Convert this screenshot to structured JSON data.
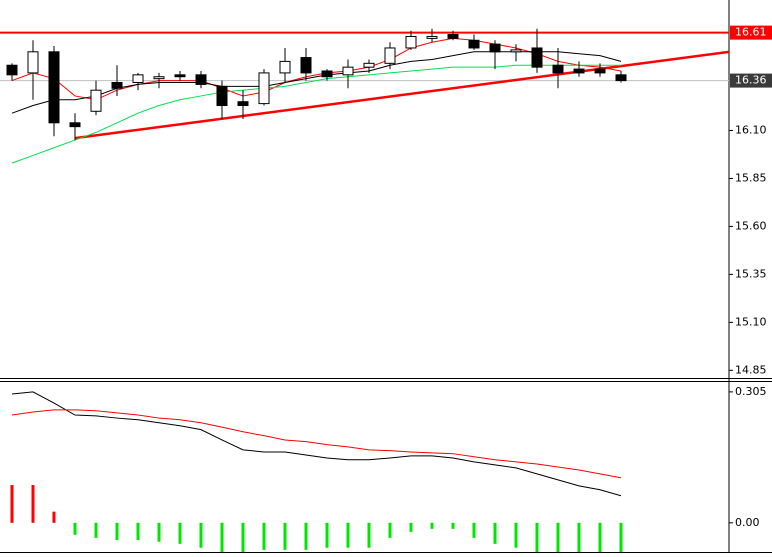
{
  "chart_data": [
    {
      "type": "candlestick",
      "candles": {
        "open": [
          16.44,
          16.4,
          16.51,
          16.14,
          16.2,
          16.35,
          16.35,
          16.37,
          16.39,
          16.39,
          16.33,
          16.25,
          16.24,
          16.4,
          16.48,
          16.41,
          16.39,
          16.43,
          16.45,
          16.53,
          16.58,
          16.6,
          16.57,
          16.55,
          16.51,
          16.53,
          16.44,
          16.42,
          16.42,
          16.39
        ],
        "high": [
          16.45,
          16.57,
          16.54,
          16.19,
          16.36,
          16.44,
          16.4,
          16.4,
          16.41,
          16.41,
          16.36,
          16.31,
          16.42,
          16.53,
          16.53,
          16.42,
          16.47,
          16.47,
          16.56,
          16.62,
          16.63,
          16.62,
          16.6,
          16.57,
          16.55,
          16.63,
          16.53,
          16.46,
          16.45,
          16.41
        ],
        "low": [
          16.36,
          16.26,
          16.07,
          16.05,
          16.18,
          16.28,
          16.31,
          16.32,
          16.36,
          16.32,
          16.16,
          16.16,
          16.23,
          16.35,
          16.36,
          16.36,
          16.32,
          16.4,
          16.42,
          16.52,
          16.56,
          16.57,
          16.52,
          16.42,
          16.46,
          16.4,
          16.32,
          16.38,
          16.38,
          16.35
        ],
        "close": [
          16.39,
          16.51,
          16.14,
          16.12,
          16.31,
          16.32,
          16.39,
          16.38,
          16.38,
          16.34,
          16.23,
          16.23,
          16.4,
          16.46,
          16.4,
          16.38,
          16.43,
          16.45,
          16.53,
          16.59,
          16.59,
          16.58,
          16.53,
          16.51,
          16.52,
          16.43,
          16.4,
          16.4,
          16.4,
          16.36
        ],
        "up_color": "#ffffff",
        "down_color": "#000000",
        "edge_color": "#000000"
      },
      "series": [
        {
          "color": "#ff0000",
          "values": [
            16.36,
            16.4,
            16.37,
            16.28,
            16.26,
            16.31,
            16.34,
            16.36,
            16.36,
            16.36,
            16.32,
            16.28,
            16.3,
            16.35,
            16.38,
            16.4,
            16.41,
            16.43,
            16.47,
            16.53,
            16.56,
            16.58,
            16.57,
            16.55,
            16.53,
            16.5,
            16.46,
            16.44,
            16.43,
            16.41
          ]
        },
        {
          "color": "#000000",
          "values": [
            16.19,
            16.23,
            16.26,
            16.26,
            16.28,
            16.32,
            16.34,
            16.35,
            16.35,
            16.35,
            16.33,
            16.33,
            16.33,
            16.35,
            16.37,
            16.39,
            16.4,
            16.41,
            16.44,
            16.46,
            16.47,
            16.49,
            16.51,
            16.51,
            16.51,
            16.51,
            16.51,
            16.5,
            16.49,
            16.46
          ]
        },
        {
          "color": "#00e050",
          "values": [
            15.93,
            15.97,
            16.01,
            16.05,
            16.09,
            16.14,
            16.19,
            16.23,
            16.26,
            16.28,
            16.3,
            16.31,
            16.32,
            16.33,
            16.35,
            16.37,
            16.38,
            16.39,
            16.4,
            16.41,
            16.42,
            16.43,
            16.43,
            16.43,
            16.44,
            16.44,
            16.44,
            16.44,
            16.44,
            16.44
          ]
        }
      ],
      "ylim": [
        14.81,
        16.78
      ],
      "yticks": [
        {
          "value": 16.1,
          "label": "16.10"
        },
        15.85,
        {
          "value": 15.6,
          "label": "15.60"
        },
        15.35,
        {
          "value": 15.1,
          "label": "15.10"
        },
        14.85
      ],
      "levels": [
        {
          "value": 16.61,
          "color": "#ff0000",
          "box_color": "#ff0000",
          "width": 2
        },
        {
          "value": 16.36,
          "color": "#c0c0c0",
          "box_color": "#3a3a3a",
          "width": 1
        }
      ],
      "trendline": {
        "x": [
          3,
          30
        ],
        "values": [
          16.06,
          16.45
        ],
        "color": "#ff0000"
      }
    },
    {
      "type": "macd",
      "histogram": {
        "values": [
          0.088,
          0.088,
          0.026,
          -0.028,
          -0.035,
          -0.04,
          -0.04,
          -0.044,
          -0.049,
          -0.058,
          -0.068,
          -0.068,
          -0.063,
          -0.063,
          -0.063,
          -0.058,
          -0.058,
          -0.058,
          -0.035,
          -0.021,
          -0.014,
          -0.014,
          -0.035,
          -0.049,
          -0.058,
          -0.068,
          -0.068,
          -0.068,
          -0.068,
          -0.068
        ],
        "up_color": "#ff0000",
        "down_color": "#00e600"
      },
      "series": [
        {
          "color": "#000000",
          "values": [
            0.3,
            0.305,
            0.279,
            0.251,
            0.249,
            0.244,
            0.24,
            0.233,
            0.226,
            0.217,
            0.193,
            0.17,
            0.165,
            0.165,
            0.158,
            0.151,
            0.147,
            0.147,
            0.151,
            0.156,
            0.156,
            0.151,
            0.142,
            0.135,
            0.128,
            0.114,
            0.1,
            0.086,
            0.077,
            0.063
          ]
        },
        {
          "color": "#ff0000",
          "values": [
            0.251,
            0.258,
            0.263,
            0.263,
            0.261,
            0.256,
            0.251,
            0.244,
            0.24,
            0.233,
            0.223,
            0.212,
            0.203,
            0.193,
            0.189,
            0.182,
            0.177,
            0.17,
            0.168,
            0.165,
            0.163,
            0.161,
            0.154,
            0.147,
            0.142,
            0.137,
            0.13,
            0.123,
            0.114,
            0.105
          ]
        }
      ],
      "ylim": [
        -0.068,
        0.328
      ],
      "yticks": [
        0.305,
        {
          "value": 0,
          "label": "0.00"
        }
      ]
    }
  ]
}
